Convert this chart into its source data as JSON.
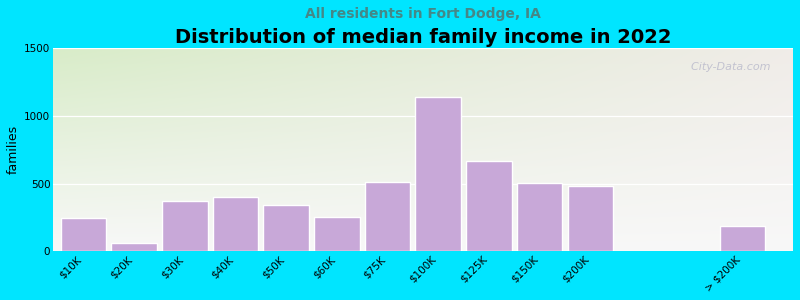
{
  "title": "Distribution of median family income in 2022",
  "subtitle": "All residents in Fort Dodge, IA",
  "ylabel": "families",
  "categories": [
    "$10K",
    "$20K",
    "$30K",
    "$40K",
    "$50K",
    "$60K",
    "$75K",
    "$100K",
    "$125K",
    "$150K",
    "$200K",
    "> $200K"
  ],
  "values": [
    250,
    65,
    375,
    400,
    345,
    255,
    510,
    1140,
    665,
    505,
    480,
    185
  ],
  "bar_color": "#c8a8d8",
  "bar_edgecolor": "#ffffff",
  "ylim": [
    0,
    1500
  ],
  "yticks": [
    0,
    500,
    1000,
    1500
  ],
  "background_outer": "#00e5ff",
  "background_plot_topleft": "#d8ecc8",
  "background_plot_right": "#f0ece8",
  "background_plot_bottom": "#f8f8f8",
  "title_fontsize": 14,
  "subtitle_fontsize": 10,
  "subtitle_color": "#448888",
  "ylabel_fontsize": 9,
  "watermark_text": "  City-Data.com",
  "watermark_color": "#bbbbcc"
}
